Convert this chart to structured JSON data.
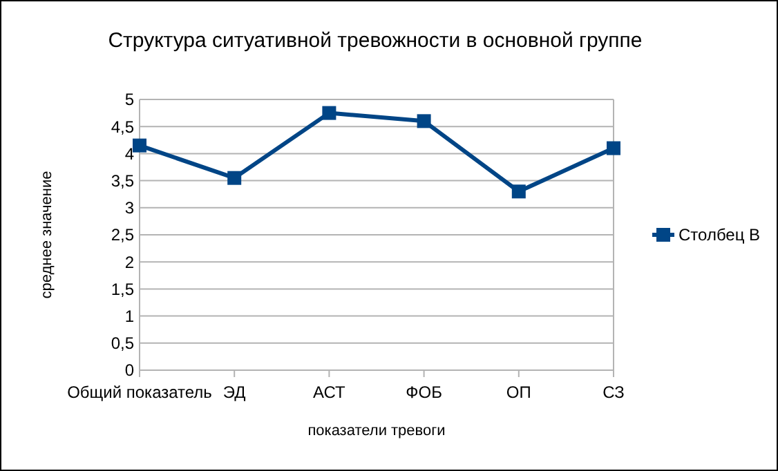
{
  "chart_data": {
    "type": "line",
    "title": "Структура ситуативной тревожности в основной группе",
    "xlabel": "показатели тревоги",
    "ylabel": "среднее значение",
    "categories": [
      "Общий показатель",
      "ЭД",
      "АСТ",
      "ФОБ",
      "ОП",
      "СЗ"
    ],
    "series": [
      {
        "name": "Столбец B",
        "color": "#004586",
        "values": [
          4.15,
          3.55,
          4.75,
          4.6,
          3.3,
          4.1
        ]
      }
    ],
    "ylim": [
      0,
      5
    ],
    "yticks": [
      0,
      {
        "value": 0.5,
        "label": "0,5"
      },
      1,
      {
        "value": 1.5,
        "label": "1,5"
      },
      2,
      {
        "value": 2.5,
        "label": "2,5"
      },
      3,
      {
        "value": 3.5,
        "label": "3,5"
      },
      4,
      {
        "value": 4.5,
        "label": "4,5"
      },
      5
    ],
    "grid": "y",
    "legend": "right",
    "marker": "square",
    "line_style": "solid"
  }
}
